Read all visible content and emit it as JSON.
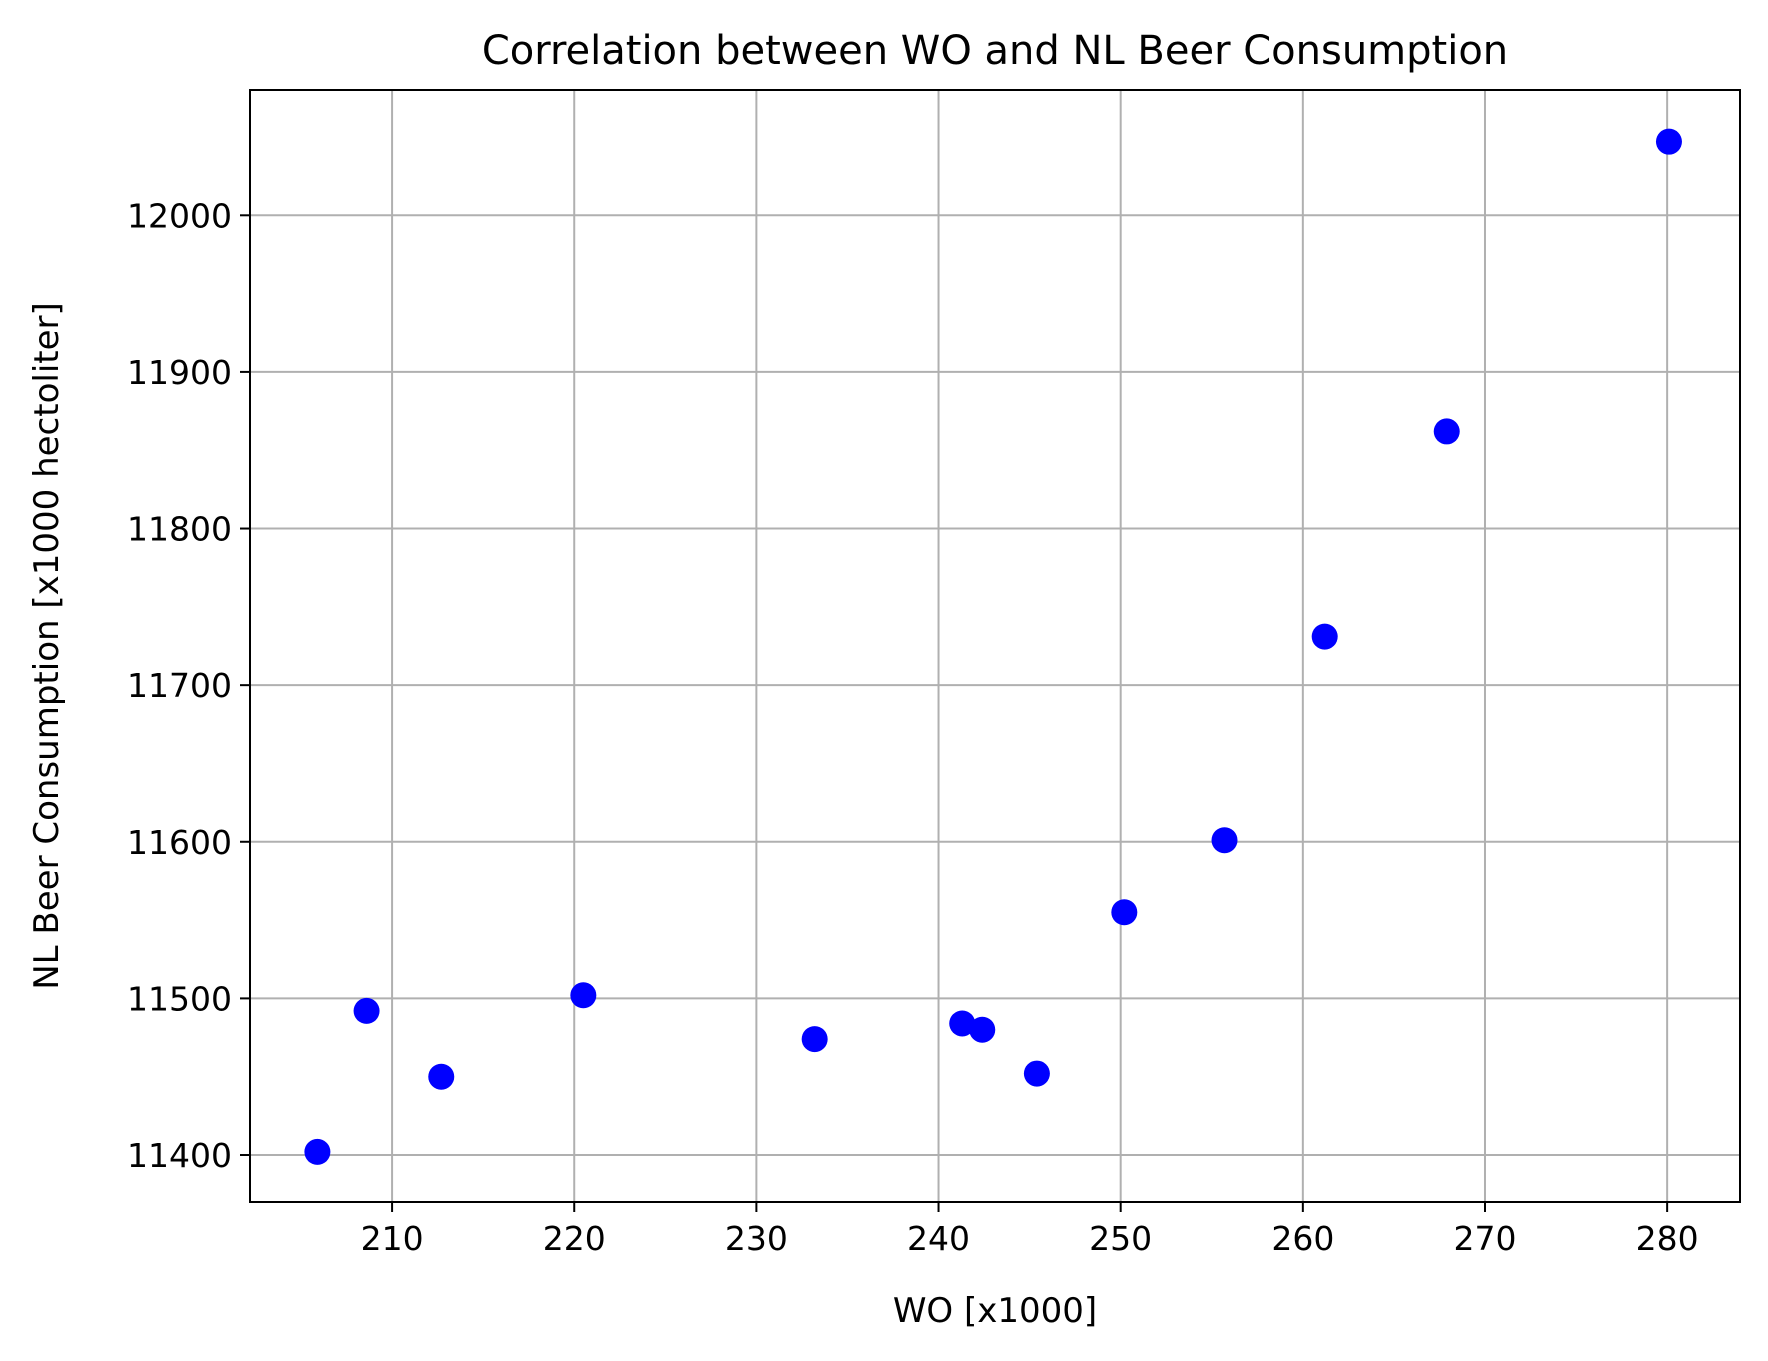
{
  "chart_data": {
    "type": "scatter",
    "title": "Correlation between WO and NL Beer Consumption",
    "xlabel": "WO [x1000]",
    "ylabel": "NL Beer Consumption [x1000 hectoliter]",
    "xlim": [
      202.2,
      284
    ],
    "ylim": [
      11370,
      12080
    ],
    "xticks": [
      210,
      220,
      230,
      240,
      250,
      260,
      270,
      280
    ],
    "yticks": [
      11400,
      11500,
      11600,
      11700,
      11800,
      11900,
      12000
    ],
    "grid": true,
    "marker_color": "#0000ff",
    "points": [
      {
        "x": 205.9,
        "y": 11402
      },
      {
        "x": 208.6,
        "y": 11492
      },
      {
        "x": 212.7,
        "y": 11450
      },
      {
        "x": 220.5,
        "y": 11502
      },
      {
        "x": 233.2,
        "y": 11474
      },
      {
        "x": 241.3,
        "y": 11484
      },
      {
        "x": 242.4,
        "y": 11480
      },
      {
        "x": 245.4,
        "y": 11452
      },
      {
        "x": 250.2,
        "y": 11555
      },
      {
        "x": 255.7,
        "y": 11601
      },
      {
        "x": 261.2,
        "y": 11731
      },
      {
        "x": 267.9,
        "y": 11862
      },
      {
        "x": 280.1,
        "y": 12047
      }
    ]
  }
}
